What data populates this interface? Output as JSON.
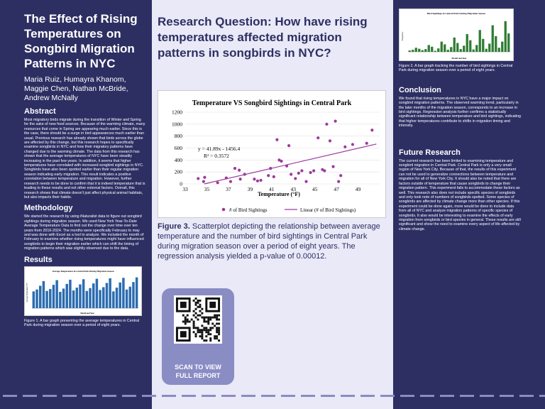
{
  "left": {
    "title": "The Effect of Rising Temperatures on Songbird Migration Patterns in NYC",
    "authors": "Maria Ruiz, Humayra Khanom, Maggie Chen, Nathan McBride, Andrew McNally",
    "abstract_heading": "Abstract",
    "abstract_text": "Most migratory birds migrate during the transition of Winter and Spring for the sake of new food sources. Because of the warming climate, many resources that come in Spring are appearing much earlier. Since this is the case, there should be a surge in bird appearances much earlier than usual. Previous research has already shown that birds across the globe are affected by this change, but this research hopes to specifically examine songbirds in NYC and how their migratory patterns have changed due to the warming climate. The data from this research has shown that the average temperatures of NYC have been steadily increasing in the past few years. In addition, it seems that higher temperatures have correlated with increased songbird sightings in NYC. Songbirds have also been spotted earlier than their regular migration season indicating early migration. This result indicates a positive correlation between temperature and migration. However, further research needs to be done to confirm that it is indeed temperature that is leading to these results and not other external factors. Overall, this research shows that climate doesn't just affect physical animal habitats, but also impacts their habits.",
    "methodology_heading": "Methodology",
    "methodology_text": "We started the research by using iNaturalist data to figure out songbird sightings during migration season. We used New York Year-To-Date Average Temperature Data to find out the change over time over ten years from 2016-2024. The months were specifically February to may and was done with Excel as a tool to analyze. We included the month of February to examine whether rising temperatures might have influenced songbirds to begin their migration earlier which can shift the timing of migration patterns which was slightly observed due to the data.",
    "results_heading": "Results",
    "fig1_title": "Average Temperature in Central Park During Migration Season",
    "fig1_xlabel": "Month and Year",
    "fig1_ylabel": "Average Temperature (°F)",
    "fig1_caption": "Figure 1. A bar graph presenting the average temperatures in Central Park during migration season over a period of eight years."
  },
  "middle": {
    "question": "Research Question: How have rising temperatures affected migration patterns in songbirds in NYC?",
    "fig3_caption_bold": "Figure 3.",
    "fig3_caption": " Scatterplot depicting the relationship between average temperature and the number of bird sightings in Central Park during migration season over a period of eight years. The regression analysis yielded a p-value of 0.00012.",
    "qr_line1": "SCAN TO VIEW",
    "qr_line2": "FULL REPORT"
  },
  "right": {
    "fig2_title": "Bird Sightings in Central Park During Migration Season",
    "fig2_xlabel": "Month and Year",
    "fig2_ylabel": "Frequency",
    "fig2_caption": "Figure 2. A bar graph tracking the number of bird sightings in Central Park during migration season over a period of eight years.",
    "conclusion_heading": "Conclusion",
    "conclusion_text": "We found that rising temperatures in NYC have a major impact on songbird migration patterns. The observed warming trend, particularly in the later months of the migration season, corresponds to an increase in bird sightings. Regression analysis further confirms a statistically significant relationship between temperature and bird sightings, indicating that higher temperatures contribute to shifts in migration timing and intensity.",
    "future_heading": "Future Research",
    "future_text": "The current research has been limited to examining temperature and songbird migration in Central Park. Central Park is only a very small region of New York City. Because of that, the results of this experiment can not be used to generalize connections between temperature and migration for all of New York City. It should also be noted that there are factors outside of temperature that cause songbirds to change their migration pattern. This experiment fails to accommodate those factors as well. This research also does not include specific species of songbirds and only took note of numbers of songbirds spotted. Some species of songbirds are affected by climate change more than other species. If this experiment could be done again, more would be done to include data from all of NYC and analyze migration patterns of specific species of songbirds. It also would be interesting to examine the effects of early migration from songbirds or bird species in general. These results are still significant and show the need to examine every aspect of life affected by climate change."
  },
  "colors": {
    "background": "#2d2f63",
    "panel": "#e9e9f7",
    "bar_green": "#2e7d32",
    "bar_blue": "#2b6cb0",
    "point": "#9c3a9c"
  },
  "chart_data": [
    {
      "type": "scatter",
      "title": "Temperature VS Songbird Sightings in Central Park",
      "xlabel": "Temperature (°F)",
      "ylabel": "",
      "xlim": [
        33,
        51
      ],
      "ylim": [
        0,
        1200
      ],
      "x_ticks": [
        "33",
        "35",
        "37",
        "39",
        "41",
        "43",
        "45",
        "47",
        "49"
      ],
      "y_ticks": [
        "0",
        "200",
        "400",
        "600",
        "800",
        "1000",
        "1200"
      ],
      "equation": "y = 41.89x - 1456.4",
      "r_squared": "R² = 0.3572",
      "legend_points": "# of Bird Sightings",
      "legend_line": "Linear (# of Bird Sightings)",
      "trendline": {
        "slope": 41.89,
        "intercept": -1456.4
      },
      "points": [
        [
          34.2,
          90
        ],
        [
          34.8,
          110
        ],
        [
          34.7,
          40
        ],
        [
          36.0,
          20
        ],
        [
          36.8,
          100
        ],
        [
          37.2,
          40
        ],
        [
          37.6,
          260
        ],
        [
          38.0,
          230
        ],
        [
          38.1,
          80
        ],
        [
          38.5,
          160
        ],
        [
          39.4,
          80
        ],
        [
          39.7,
          50
        ],
        [
          40.0,
          60
        ],
        [
          40.7,
          140
        ],
        [
          40.9,
          260
        ],
        [
          41.2,
          120
        ],
        [
          41.5,
          740
        ],
        [
          41.7,
          400
        ],
        [
          41.9,
          380
        ],
        [
          42.4,
          300
        ],
        [
          42.6,
          640
        ],
        [
          42.8,
          160
        ],
        [
          43.2,
          90
        ],
        [
          43.5,
          180
        ],
        [
          43.8,
          220
        ],
        [
          44.2,
          40
        ],
        [
          44.6,
          190
        ],
        [
          44.9,
          220
        ],
        [
          45.3,
          770
        ],
        [
          45.7,
          240
        ],
        [
          45.9,
          220
        ],
        [
          46.1,
          1000
        ],
        [
          46.4,
          720
        ],
        [
          46.7,
          290
        ],
        [
          46.9,
          1050
        ],
        [
          47.2,
          40
        ],
        [
          47.4,
          140
        ],
        [
          47.8,
          620
        ],
        [
          48.5,
          660
        ],
        [
          49.8,
          680
        ],
        [
          50.3,
          900
        ]
      ]
    },
    {
      "type": "bar",
      "title": "Average Temperature in Central Park During Migration Season",
      "xlabel": "Month and Year",
      "ylabel": "Average Temperature (°F)",
      "values": [
        36,
        40,
        48,
        58,
        37,
        41,
        50,
        60,
        35,
        42,
        52,
        61,
        38,
        44,
        51,
        62,
        37,
        43,
        53,
        63,
        39,
        45,
        54,
        64,
        36,
        44,
        55,
        65,
        40,
        46,
        56,
        66
      ]
    },
    {
      "type": "bar",
      "title": "Bird Sightings in Central Park During Migration Season",
      "xlabel": "Month and Year",
      "ylabel": "Frequency",
      "values": [
        40,
        60,
        120,
        90,
        50,
        80,
        200,
        150,
        30,
        100,
        300,
        220,
        60,
        140,
        420,
        260,
        80,
        180,
        520,
        340,
        70,
        200,
        640,
        380,
        90,
        240,
        780,
        460,
        120,
        300,
        900,
        540
      ]
    }
  ]
}
